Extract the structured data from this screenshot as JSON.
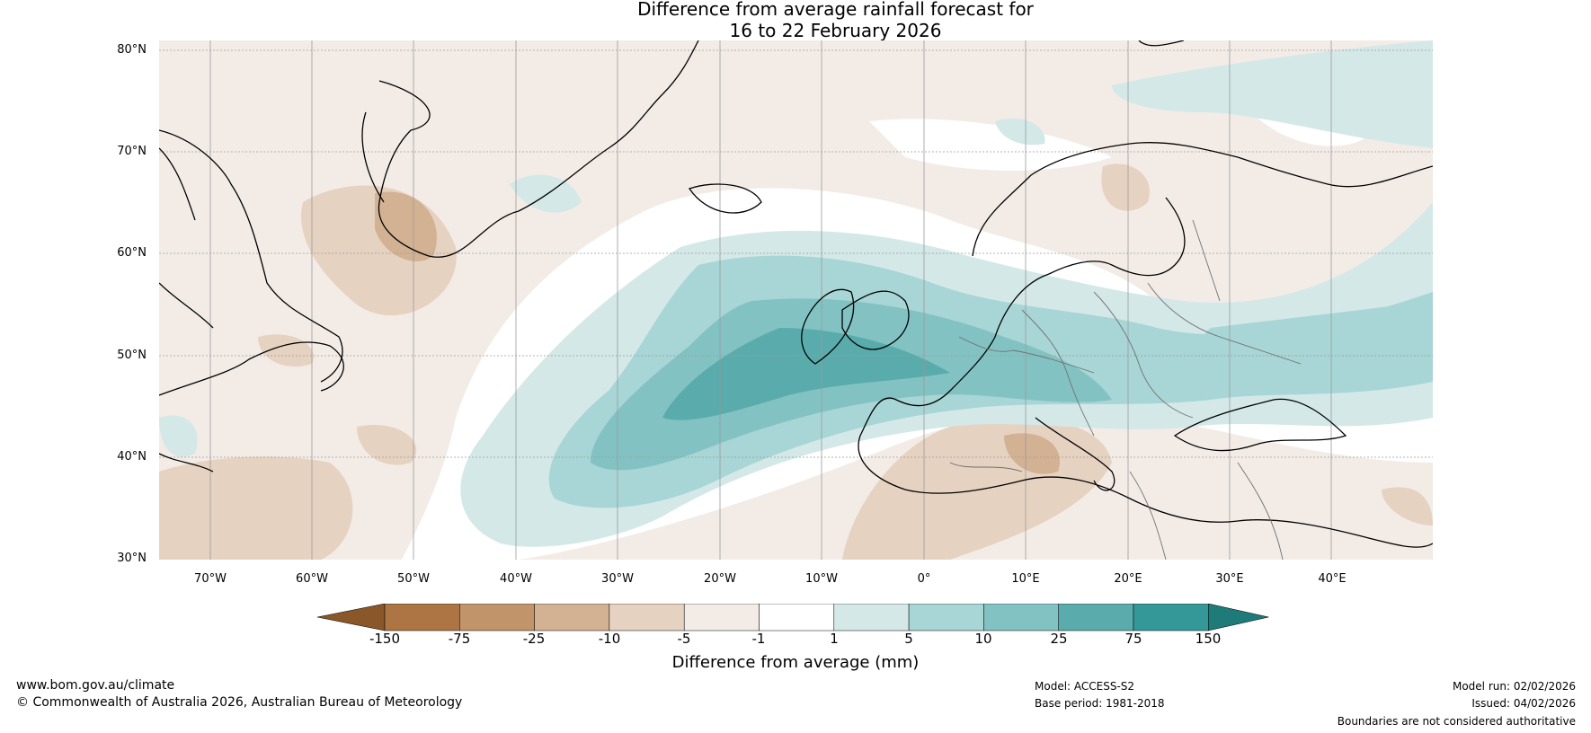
{
  "title": {
    "line1": "Difference from average rainfall forecast for",
    "line2": "16 to 22 February 2026"
  },
  "map": {
    "latitude_labels": [
      "80°N",
      "70°N",
      "60°N",
      "50°N",
      "40°N",
      "30°N"
    ],
    "longitude_labels": [
      "70°W",
      "60°W",
      "50°W",
      "40°W",
      "30°W",
      "20°W",
      "10°W",
      "0°",
      "10°E",
      "20°E",
      "30°E",
      "40°E"
    ],
    "extent": {
      "lon_min": -75,
      "lon_max": 50,
      "lat_min": 30,
      "lat_max": 81
    }
  },
  "legend": {
    "ticks": [
      "-150",
      "-75",
      "-25",
      "-10",
      "-5",
      "-1",
      "1",
      "5",
      "10",
      "25",
      "75",
      "150"
    ],
    "colors": [
      "#8a5828",
      "#ad7543",
      "#c19469",
      "#d2b293",
      "#e6d2c1",
      "#f3ece6",
      "#ffffff",
      "#d4e8e8",
      "#a8d5d5",
      "#83c2c2",
      "#5aacac",
      "#359898",
      "#1f7a7a"
    ],
    "label": "Difference from average (mm)"
  },
  "footer": {
    "website": "www.bom.gov.au/climate",
    "copyright": "© Commonwealth of Australia 2026, Australian Bureau of Meteorology",
    "model": "Model: ACCESS-S2",
    "base_period": "Base period: 1981-2018",
    "model_run": "Model run: 02/02/2026",
    "issued": "Issued: 04/02/2026",
    "disclaimer": "Boundaries are not considered authoritative"
  }
}
